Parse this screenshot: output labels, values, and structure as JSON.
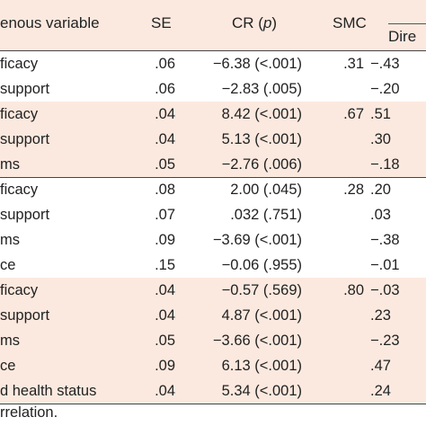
{
  "header": {
    "variable": "enous variable",
    "se": "SE",
    "cr": "CR (",
    "cr_p": "p",
    "cr_close": ")",
    "smc": "SMC",
    "direct": "Dire"
  },
  "rows": [
    {
      "variable": "ficacy",
      "se": ".06",
      "cr": "−6.38 (<.001)",
      "smc": ".31",
      "direct": "−.43",
      "shaded": false
    },
    {
      "variable": "support",
      "se": ".06",
      "cr": "−2.83 (.005)",
      "smc": "",
      "direct": "−.20",
      "shaded": false
    },
    {
      "variable": "ficacy",
      "se": ".04",
      "cr": "8.42 (<.001)",
      "smc": ".67",
      "direct": ".51",
      "shaded": true
    },
    {
      "variable": "support",
      "se": ".04",
      "cr": "5.13 (<.001)",
      "smc": "",
      "direct": ".30",
      "shaded": true
    },
    {
      "variable": "ms",
      "se": ".05",
      "cr": "−2.76 (.006)",
      "smc": "",
      "direct": "−.18",
      "shaded": true
    },
    {
      "variable": "ficacy",
      "se": ".08",
      "cr": "2.00 (.045)",
      "smc": ".28",
      "direct": ".20",
      "shaded": false
    },
    {
      "variable": "support",
      "se": ".07",
      "cr": ".032 (.751)",
      "smc": "",
      "direct": ".03",
      "shaded": false
    },
    {
      "variable": "ms",
      "se": ".09",
      "cr": "−3.69 (<.001)",
      "smc": "",
      "direct": "−.38",
      "shaded": false
    },
    {
      "variable": "ce",
      "se": ".15",
      "cr": "−0.06 (.955)",
      "smc": "",
      "direct": "−.01",
      "shaded": false
    },
    {
      "variable": "ficacy",
      "se": ".04",
      "cr": "−0.57 (.569)",
      "smc": ".80",
      "direct": "−.03",
      "shaded": true
    },
    {
      "variable": "support",
      "se": ".04",
      "cr": "4.87 (<.001)",
      "smc": "",
      "direct": ".23",
      "shaded": true
    },
    {
      "variable": "ms",
      "se": ".05",
      "cr": "−3.66 (<.001)",
      "smc": "",
      "direct": "−.23",
      "shaded": true
    },
    {
      "variable": "ce",
      "se": ".09",
      "cr": "6.13 (<.001)",
      "smc": "",
      "direct": ".47",
      "shaded": true
    },
    {
      "variable": "d health status",
      "se": ".04",
      "cr": "5.34 (<.001)",
      "smc": "",
      "direct": ".24",
      "shaded": true
    }
  ],
  "footnote": "rrelation."
}
